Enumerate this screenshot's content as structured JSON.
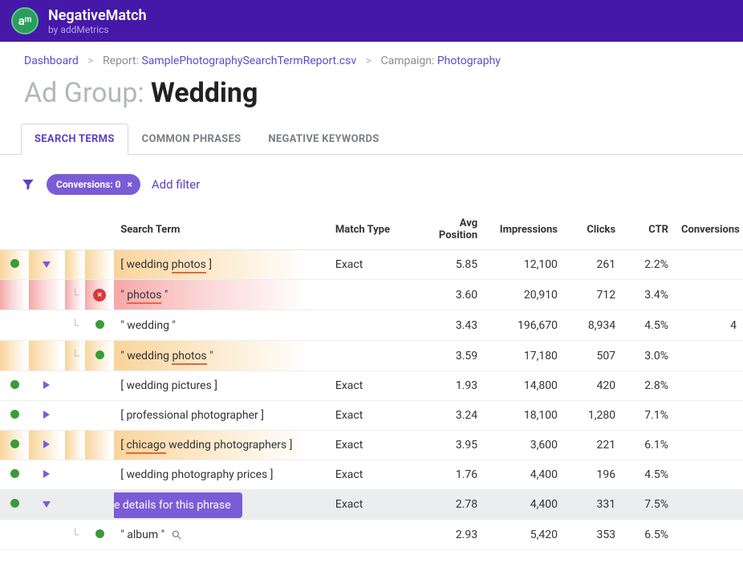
{
  "brand": {
    "logo_text": "aᵐ",
    "title": "NegativeMatch",
    "subtitle": "by addMetrics"
  },
  "breadcrumb": {
    "dashboard": "Dashboard",
    "report_label": "Report:",
    "report_name": "SamplePhotographySearchTermReport.csv",
    "campaign_label": "Campaign:",
    "campaign_name": "Photography"
  },
  "page": {
    "title_prefix": "Ad Group:",
    "title_value": "Wedding"
  },
  "tabs": [
    {
      "label": "SEARCH TERMS",
      "active": true
    },
    {
      "label": "COMMON PHRASES",
      "active": false
    },
    {
      "label": "NEGATIVE KEYWORDS",
      "active": false
    }
  ],
  "filter": {
    "chip_label": "Conversions: 0",
    "add_label": "Add filter"
  },
  "columns": {
    "term": "Search Term",
    "match": "Match Type",
    "pos": "Avg Position",
    "imp": "Impressions",
    "clicks": "Clicks",
    "ctr": "CTR",
    "conv": "Conversions"
  },
  "tooltip": "See details for this phrase",
  "rows": [
    {
      "kind": "parent",
      "expanded": true,
      "tone": "orange",
      "term_parts": [
        "[ wedding ",
        "photos",
        " ]"
      ],
      "underline_idx": 1,
      "match": "Exact",
      "pos": "5.85",
      "imp": "12,100",
      "clicks": "261",
      "ctr": "2.2%",
      "conv": ""
    },
    {
      "kind": "child",
      "marker": "red",
      "tone": "red",
      "term_parts": [
        "\" ",
        "photos",
        " \""
      ],
      "underline_idx": 1,
      "match": "",
      "pos": "3.60",
      "imp": "20,910",
      "clicks": "712",
      "ctr": "3.4%",
      "conv": ""
    },
    {
      "kind": "child",
      "marker": "green",
      "tone": "none",
      "term_parts": [
        "\" wedding \""
      ],
      "underline_idx": -1,
      "match": "",
      "pos": "3.43",
      "imp": "196,670",
      "clicks": "8,934",
      "ctr": "4.5%",
      "conv": "4"
    },
    {
      "kind": "child",
      "marker": "green",
      "tone": "orange",
      "term_parts": [
        "\" wedding ",
        "photos",
        " \""
      ],
      "underline_idx": 1,
      "match": "",
      "pos": "3.59",
      "imp": "17,180",
      "clicks": "507",
      "ctr": "3.0%",
      "conv": ""
    },
    {
      "kind": "parent",
      "expanded": false,
      "tone": "none",
      "term_parts": [
        "[ wedding pictures ]"
      ],
      "underline_idx": -1,
      "match": "Exact",
      "pos": "1.93",
      "imp": "14,800",
      "clicks": "420",
      "ctr": "2.8%",
      "conv": ""
    },
    {
      "kind": "parent",
      "expanded": false,
      "tone": "none",
      "term_parts": [
        "[ professional photographer ]"
      ],
      "underline_idx": -1,
      "match": "Exact",
      "pos": "3.24",
      "imp": "18,100",
      "clicks": "1,280",
      "ctr": "7.1%",
      "conv": ""
    },
    {
      "kind": "parent",
      "expanded": false,
      "tone": "orange",
      "term_parts": [
        "[ ",
        "chicago",
        " wedding photographers ]"
      ],
      "underline_idx": 1,
      "match": "Exact",
      "pos": "3.95",
      "imp": "3,600",
      "clicks": "221",
      "ctr": "6.1%",
      "conv": ""
    },
    {
      "kind": "parent",
      "expanded": false,
      "tone": "none",
      "term_parts": [
        "[ wedding photography prices ]"
      ],
      "underline_idx": -1,
      "match": "Exact",
      "pos": "1.76",
      "imp": "4,400",
      "clicks": "196",
      "ctr": "4.5%",
      "conv": ""
    },
    {
      "kind": "parent",
      "expanded": true,
      "tone": "gray",
      "tooltip": true,
      "term_parts": [
        ""
      ],
      "underline_idx": -1,
      "match": "Exact",
      "pos": "2.78",
      "imp": "4,400",
      "clicks": "331",
      "ctr": "7.5%",
      "conv": ""
    },
    {
      "kind": "child",
      "marker": "green",
      "tone": "none",
      "mag": true,
      "term_parts": [
        "\" album \" "
      ],
      "underline_idx": -1,
      "match": "",
      "pos": "2.93",
      "imp": "5,420",
      "clicks": "353",
      "ctr": "6.5%",
      "conv": ""
    }
  ],
  "colors": {
    "header_bg": "#4518a8",
    "accent": "#5a3ec8",
    "chip_bg": "#7b5cd6",
    "green": "#3a9b3a",
    "red": "#d63a3a",
    "orange_grad_start": "#f9d49a",
    "red_grad_start": "#f5a8a8",
    "gray_row": "#ebedef",
    "underline": "#d86b3f"
  }
}
